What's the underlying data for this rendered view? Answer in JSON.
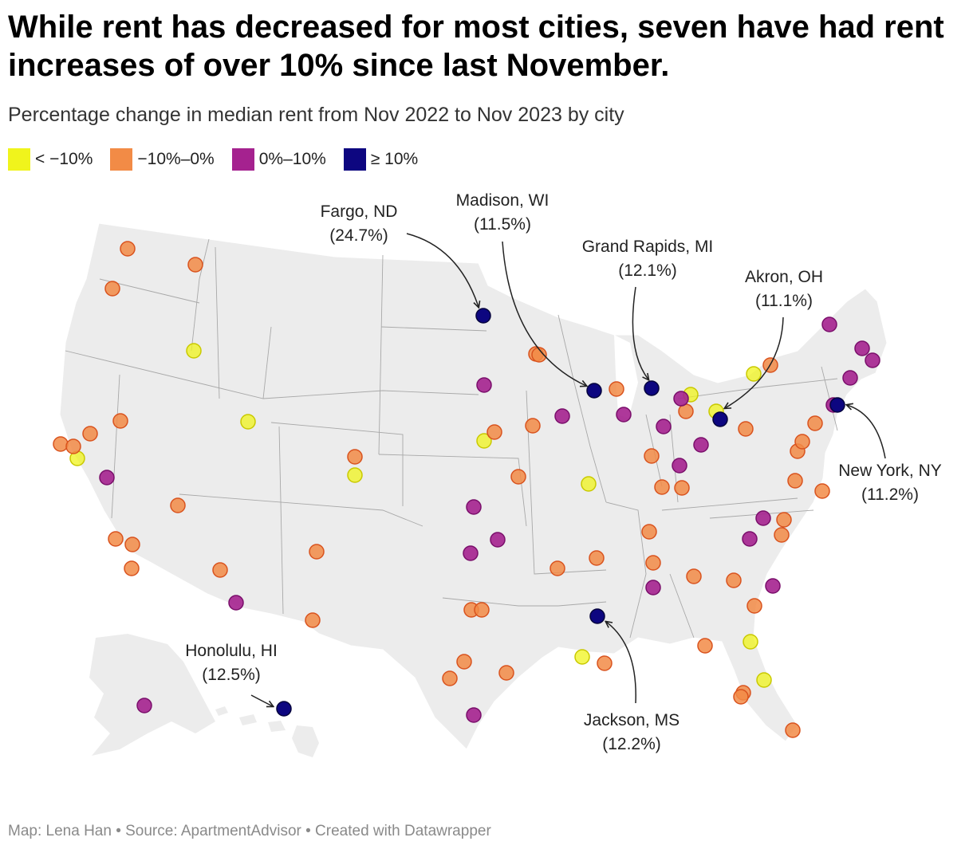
{
  "title": "While rent has decreased for most cities, seven have had rent increases of over 10% since last November.",
  "subtitle": "Percentage change in median rent from Nov 2022 to Nov 2023 by city",
  "legend": [
    {
      "label": "< −10%",
      "color": "#f0f41c"
    },
    {
      "label": "−10%–0%",
      "color": "#f28b46"
    },
    {
      "label": "0%–10%",
      "color": "#a5228f"
    },
    {
      "label": "≥ 10%",
      "color": "#0d0680"
    }
  ],
  "annotations": [
    {
      "city": "Fargo, ND",
      "value": "(24.7%)"
    },
    {
      "city": "Madison, WI",
      "value": "(11.5%)"
    },
    {
      "city": "Grand Rapids, MI",
      "value": "(12.1%)"
    },
    {
      "city": "Akron, OH",
      "value": "(11.1%)"
    },
    {
      "city": "New York, NY",
      "value": "(11.2%)"
    },
    {
      "city": "Jackson, MS",
      "value": "(12.2%)"
    },
    {
      "city": "Honolulu, HI",
      "value": "(12.5%)"
    }
  ],
  "footer": "Map: Lena Han • Source: ApartmentAdvisor • Created with Datawrapper"
}
